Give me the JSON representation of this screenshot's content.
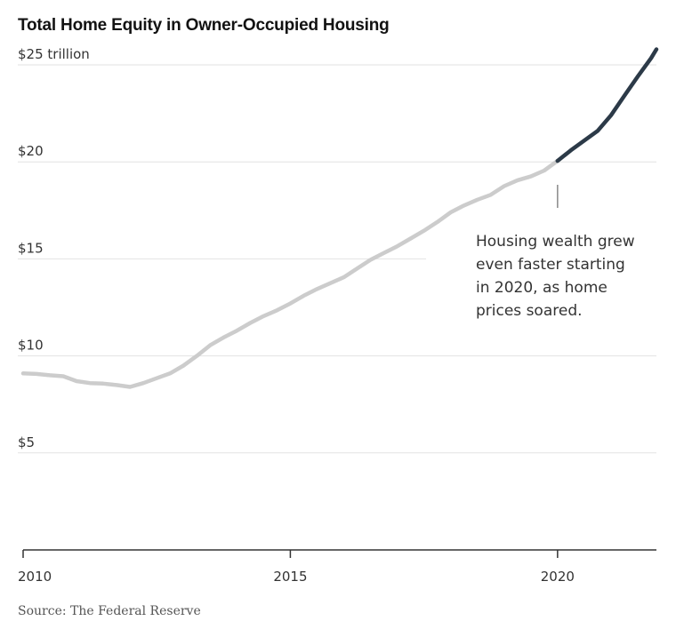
{
  "chart_data": {
    "type": "line",
    "title": "Total Home Equity in Owner-Occupied Housing",
    "xlabel": "",
    "ylabel": "",
    "xlim": [
      2010,
      2021.85
    ],
    "ylim": [
      0,
      25
    ],
    "y_ticks": [
      {
        "value": 25,
        "label": "$25 trillion"
      },
      {
        "value": 20,
        "label": "$20"
      },
      {
        "value": 15,
        "label": "$15"
      },
      {
        "value": 10,
        "label": "$10"
      },
      {
        "value": 5,
        "label": "$5"
      }
    ],
    "x_ticks": [
      {
        "value": 2010,
        "label": "2010"
      },
      {
        "value": 2015,
        "label": "2015"
      },
      {
        "value": 2020,
        "label": "2020"
      }
    ],
    "grid": true,
    "series": [
      {
        "color": "#cccccc",
        "x": [
          2010.0,
          2010.25,
          2010.5,
          2010.75,
          2011.0,
          2011.25,
          2011.5,
          2011.75,
          2012.0,
          2012.25,
          2012.5,
          2012.75,
          2013.0,
          2013.25,
          2013.5,
          2013.75,
          2014.0,
          2014.25,
          2014.5,
          2014.75,
          2015.0,
          2015.25,
          2015.5,
          2015.75,
          2016.0,
          2016.25,
          2016.5,
          2016.75,
          2017.0,
          2017.25,
          2017.5,
          2017.75,
          2018.0,
          2018.25,
          2018.5,
          2018.75,
          2019.0,
          2019.25,
          2019.5,
          2019.75,
          2020.0
        ],
        "values": [
          9.1,
          9.07,
          9.0,
          8.95,
          8.7,
          8.6,
          8.57,
          8.5,
          8.4,
          8.6,
          8.85,
          9.1,
          9.5,
          10.0,
          10.55,
          10.95,
          11.3,
          11.7,
          12.05,
          12.35,
          12.7,
          13.1,
          13.45,
          13.75,
          14.05,
          14.5,
          14.95,
          15.3,
          15.65,
          16.05,
          16.45,
          16.9,
          17.4,
          17.75,
          18.05,
          18.3,
          18.75,
          19.05,
          19.25,
          19.55,
          20.05
        ]
      },
      {
        "color": "#2c3a48",
        "x": [
          2020.0,
          2020.25,
          2020.5,
          2020.75,
          2021.0,
          2021.25,
          2021.5,
          2021.75,
          2021.85
        ],
        "values": [
          20.05,
          20.6,
          21.1,
          21.6,
          22.4,
          23.4,
          24.4,
          25.35,
          25.8
        ]
      }
    ],
    "annotations": [
      {
        "x": 2020,
        "lines": [
          "Housing wealth grew",
          "even faster starting",
          "in 2020, as home",
          "prices soared."
        ]
      }
    ]
  },
  "source": "Source: The Federal Reserve"
}
